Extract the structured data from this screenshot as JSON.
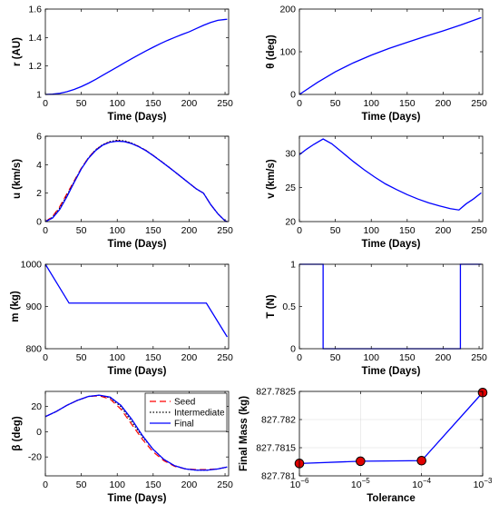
{
  "chart_data": [
    {
      "id": "r",
      "type": "line",
      "xlabel": "Time (Days)",
      "ylabel": "r (AU)",
      "xlim": [
        0,
        255
      ],
      "ylim": [
        1,
        1.6
      ],
      "xticks": [
        0,
        50,
        100,
        150,
        200,
        250
      ],
      "yticks": [
        1,
        1.2,
        1.4,
        1.6
      ],
      "ytick_labels": [
        "1",
        "1.2",
        "1.4",
        "1.6"
      ],
      "series": [
        {
          "color": "#0000ff",
          "dash": "solid",
          "x": [
            0,
            10,
            20,
            30,
            40,
            50,
            60,
            70,
            80,
            90,
            100,
            110,
            120,
            130,
            140,
            150,
            160,
            170,
            180,
            190,
            200,
            210,
            220,
            230,
            240,
            250,
            253
          ],
          "y": [
            1.0,
            1.002,
            1.008,
            1.019,
            1.035,
            1.055,
            1.079,
            1.106,
            1.135,
            1.164,
            1.193,
            1.222,
            1.251,
            1.279,
            1.306,
            1.332,
            1.357,
            1.38,
            1.401,
            1.421,
            1.44,
            1.463,
            1.486,
            1.506,
            1.521,
            1.527,
            1.528
          ]
        }
      ]
    },
    {
      "id": "theta",
      "type": "line",
      "xlabel": "Time (Days)",
      "ylabel": "θ (deg)",
      "xlim": [
        0,
        255
      ],
      "ylim": [
        0,
        200
      ],
      "xticks": [
        0,
        50,
        100,
        150,
        200,
        250
      ],
      "yticks": [
        0,
        100,
        200
      ],
      "ytick_labels": [
        "0",
        "100",
        "200"
      ],
      "series": [
        {
          "color": "#0000ff",
          "dash": "solid",
          "x": [
            0,
            25,
            50,
            75,
            100,
            125,
            150,
            175,
            200,
            225,
            253
          ],
          "y": [
            0,
            28,
            53,
            74,
            92,
            108,
            122,
            136,
            149,
            163,
            180
          ]
        }
      ]
    },
    {
      "id": "u",
      "type": "line",
      "xlabel": "Time (Days)",
      "ylabel": "u (km/s)",
      "xlim": [
        0,
        255
      ],
      "ylim": [
        0,
        6
      ],
      "xticks": [
        0,
        50,
        100,
        150,
        200,
        250
      ],
      "yticks": [
        0,
        2,
        4,
        6
      ],
      "ytick_labels": [
        "0",
        "2",
        "4",
        "6"
      ],
      "series": [
        {
          "name": "Seed",
          "color": "#ff0000",
          "dash": "7,4",
          "x": [
            0,
            10,
            20,
            30,
            40,
            50,
            60,
            70,
            80,
            90,
            100,
            110,
            120,
            130,
            140,
            150,
            160,
            170,
            180,
            190,
            200,
            210,
            220,
            230,
            240,
            250,
            253
          ],
          "y": [
            0,
            0.35,
            1.05,
            1.95,
            2.85,
            3.75,
            4.5,
            5.05,
            5.4,
            5.6,
            5.68,
            5.64,
            5.5,
            5.28,
            5.0,
            4.65,
            4.28,
            3.9,
            3.5,
            3.1,
            2.7,
            2.3,
            2.0,
            1.2,
            0.55,
            0.05,
            0
          ]
        },
        {
          "name": "Intermediate",
          "color": "#000000",
          "dash": "1.5,2",
          "x": [
            0,
            10,
            20,
            30,
            40,
            50,
            60,
            70,
            80,
            90,
            100,
            110,
            120,
            130,
            140,
            150,
            160,
            170,
            180,
            190,
            200,
            210,
            220,
            230,
            240,
            250,
            253
          ],
          "y": [
            0,
            0.3,
            0.95,
            1.85,
            2.8,
            3.72,
            4.48,
            5.05,
            5.42,
            5.63,
            5.72,
            5.68,
            5.52,
            5.28,
            5.0,
            4.65,
            4.28,
            3.9,
            3.5,
            3.1,
            2.7,
            2.3,
            2.0,
            1.2,
            0.55,
            0.05,
            0
          ]
        },
        {
          "name": "Final",
          "color": "#0000ff",
          "dash": "solid",
          "x": [
            0,
            10,
            20,
            30,
            40,
            50,
            60,
            70,
            80,
            90,
            100,
            110,
            120,
            130,
            140,
            150,
            160,
            170,
            180,
            190,
            200,
            210,
            220,
            230,
            240,
            250,
            253
          ],
          "y": [
            0,
            0.25,
            0.85,
            1.75,
            2.75,
            3.7,
            4.45,
            5.0,
            5.38,
            5.58,
            5.65,
            5.62,
            5.48,
            5.26,
            4.98,
            4.64,
            4.27,
            3.89,
            3.5,
            3.1,
            2.7,
            2.3,
            2.0,
            1.2,
            0.55,
            0.05,
            0
          ]
        }
      ]
    },
    {
      "id": "v",
      "type": "line",
      "xlabel": "Time (Days)",
      "ylabel": "v (km/s)",
      "xlim": [
        0,
        255
      ],
      "ylim": [
        20,
        32.5
      ],
      "xticks": [
        0,
        50,
        100,
        150,
        200,
        250
      ],
      "yticks": [
        20,
        25,
        30
      ],
      "ytick_labels": [
        "20",
        "25",
        "30"
      ],
      "series": [
        {
          "color": "#0000ff",
          "dash": "solid",
          "x": [
            0,
            10,
            20,
            33,
            45,
            60,
            75,
            90,
            105,
            120,
            135,
            150,
            165,
            180,
            195,
            210,
            222,
            232,
            242,
            253
          ],
          "y": [
            29.8,
            30.6,
            31.3,
            32.1,
            31.4,
            30.1,
            28.8,
            27.6,
            26.5,
            25.5,
            24.7,
            23.95,
            23.3,
            22.75,
            22.3,
            21.9,
            21.7,
            22.6,
            23.3,
            24.2
          ]
        }
      ]
    },
    {
      "id": "m",
      "type": "line",
      "xlabel": "Time (Days)",
      "ylabel": "m (kg)",
      "xlim": [
        0,
        255
      ],
      "ylim": [
        800,
        1000
      ],
      "xticks": [
        0,
        50,
        100,
        150,
        200,
        250
      ],
      "yticks": [
        800,
        900,
        1000
      ],
      "ytick_labels": [
        "800",
        "900",
        "1000"
      ],
      "series": [
        {
          "color": "#0000ff",
          "dash": "solid",
          "x": [
            0,
            33,
            224,
            253
          ],
          "y": [
            1000,
            908,
            908,
            828
          ]
        }
      ]
    },
    {
      "id": "T",
      "type": "line",
      "xlabel": "Time (Days)",
      "ylabel": "T (N)",
      "xlim": [
        0,
        255
      ],
      "ylim": [
        0,
        1
      ],
      "xticks": [
        0,
        50,
        100,
        150,
        200,
        250
      ],
      "yticks": [
        0,
        0.5,
        1
      ],
      "ytick_labels": [
        "0",
        "0.5",
        "1"
      ],
      "series": [
        {
          "color": "#0000ff",
          "dash": "solid",
          "x": [
            0,
            33,
            33,
            224,
            224,
            253
          ],
          "y": [
            1,
            1,
            0,
            0,
            1,
            1
          ]
        }
      ]
    },
    {
      "id": "beta",
      "type": "line",
      "xlabel": "Time (Days)",
      "ylabel": "β (deg)",
      "xlim": [
        0,
        255
      ],
      "ylim": [
        -35,
        32
      ],
      "xticks": [
        0,
        50,
        100,
        150,
        200,
        250
      ],
      "yticks": [
        -20,
        0,
        20
      ],
      "ytick_labels": [
        "-20",
        "0",
        "20"
      ],
      "legend": {
        "position": "top-right",
        "entries": [
          "Seed",
          "Intermediate",
          "Final"
        ]
      },
      "series": [
        {
          "name": "Seed",
          "color": "#ff0000",
          "dash": "7,4",
          "x": [
            0,
            15,
            30,
            45,
            60,
            75,
            90,
            105,
            120,
            135,
            150,
            165,
            180,
            195,
            210,
            225,
            240,
            253
          ],
          "y": [
            12,
            16,
            21,
            25,
            28,
            28.5,
            26,
            18,
            6,
            -6,
            -16,
            -23,
            -27.5,
            -29.5,
            -30,
            -30,
            -29.5,
            -28
          ]
        },
        {
          "name": "Intermediate",
          "color": "#000000",
          "dash": "1.5,2",
          "x": [
            0,
            15,
            30,
            45,
            60,
            75,
            90,
            105,
            120,
            135,
            150,
            165,
            180,
            195,
            210,
            225,
            240,
            253
          ],
          "y": [
            12,
            16,
            21,
            25,
            28,
            29,
            27,
            20,
            8,
            -4,
            -14,
            -22,
            -27,
            -29.5,
            -30.5,
            -30.5,
            -29.5,
            -28
          ]
        },
        {
          "name": "Final",
          "color": "#0000ff",
          "dash": "solid",
          "x": [
            0,
            15,
            30,
            45,
            60,
            75,
            90,
            105,
            120,
            135,
            150,
            165,
            180,
            195,
            210,
            225,
            240,
            253
          ],
          "y": [
            12,
            16,
            21,
            25,
            28,
            29,
            27.5,
            21,
            10,
            -3,
            -14,
            -22,
            -27,
            -29.5,
            -30.5,
            -30.5,
            -29.5,
            -28
          ]
        }
      ]
    },
    {
      "id": "final_mass",
      "type": "line",
      "xlabel": "Tolerance",
      "ylabel": "Final Mass (kg)",
      "xscale": "log",
      "grid": true,
      "xlim": [
        1e-06,
        0.001
      ],
      "ylim": [
        827.781,
        827.7825
      ],
      "xticks": [
        1e-06,
        1e-05,
        0.0001,
        0.001
      ],
      "xtick_labels": [
        "10^-6",
        "10^-5",
        "10^-4",
        "10^-3"
      ],
      "yticks": [
        827.781,
        827.7815,
        827.782,
        827.7825
      ],
      "ytick_labels": [
        "827.781",
        "827.7815",
        "827.782",
        "827.7825"
      ],
      "series": [
        {
          "color": "#0000ff",
          "dash": "solid",
          "marker": "circle",
          "marker_color": "#e00000",
          "x": [
            1e-06,
            1e-05,
            0.0001,
            0.001
          ],
          "y": [
            827.78122,
            827.78126,
            827.78127,
            827.78248
          ]
        }
      ]
    }
  ]
}
